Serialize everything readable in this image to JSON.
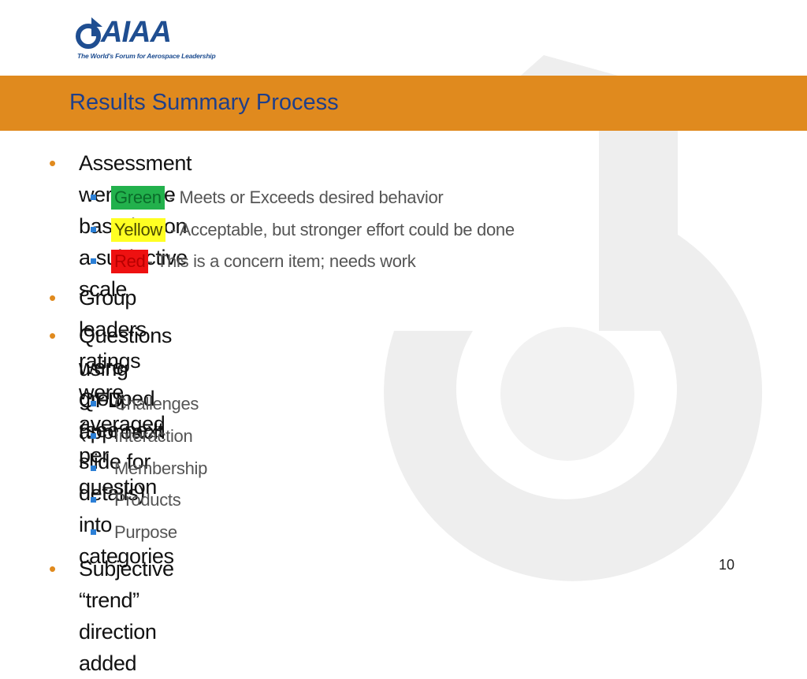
{
  "logo": {
    "wordmark": "AIAA",
    "tagline": "The World's Forum for Aerospace Leadership"
  },
  "title": "Results Summary Process",
  "bullets": [
    {
      "text": "Assessment were done based upon a subjective scale",
      "sub": [
        {
          "tag": "Green",
          "text": "- Meets or Exceeds desired behavior",
          "color": "#22b14c"
        },
        {
          "tag": "Yellow",
          "text": "- Acceptable, but stronger effort could be done",
          "color": "#ffff22"
        },
        {
          "tag": "Red",
          "text": "- This is a concern item; needs work",
          "color": "#ee1111"
        }
      ]
    },
    {
      "text": "Group leaders ratings were averaged per question"
    },
    {
      "text_line1": "Questions were grouped (see next slide for details) into categories",
      "text_line2": "using QFD approach",
      "sub": [
        "Challenges",
        "Interaction",
        "Membership",
        "Products",
        "Purpose"
      ]
    },
    {
      "text": "Subjective “trend”  direction added"
    }
  ],
  "page_number": "10",
  "colors": {
    "accent": "#e08a1e",
    "title": "#1f3f8a",
    "subbullet": "#2b7fd6"
  }
}
